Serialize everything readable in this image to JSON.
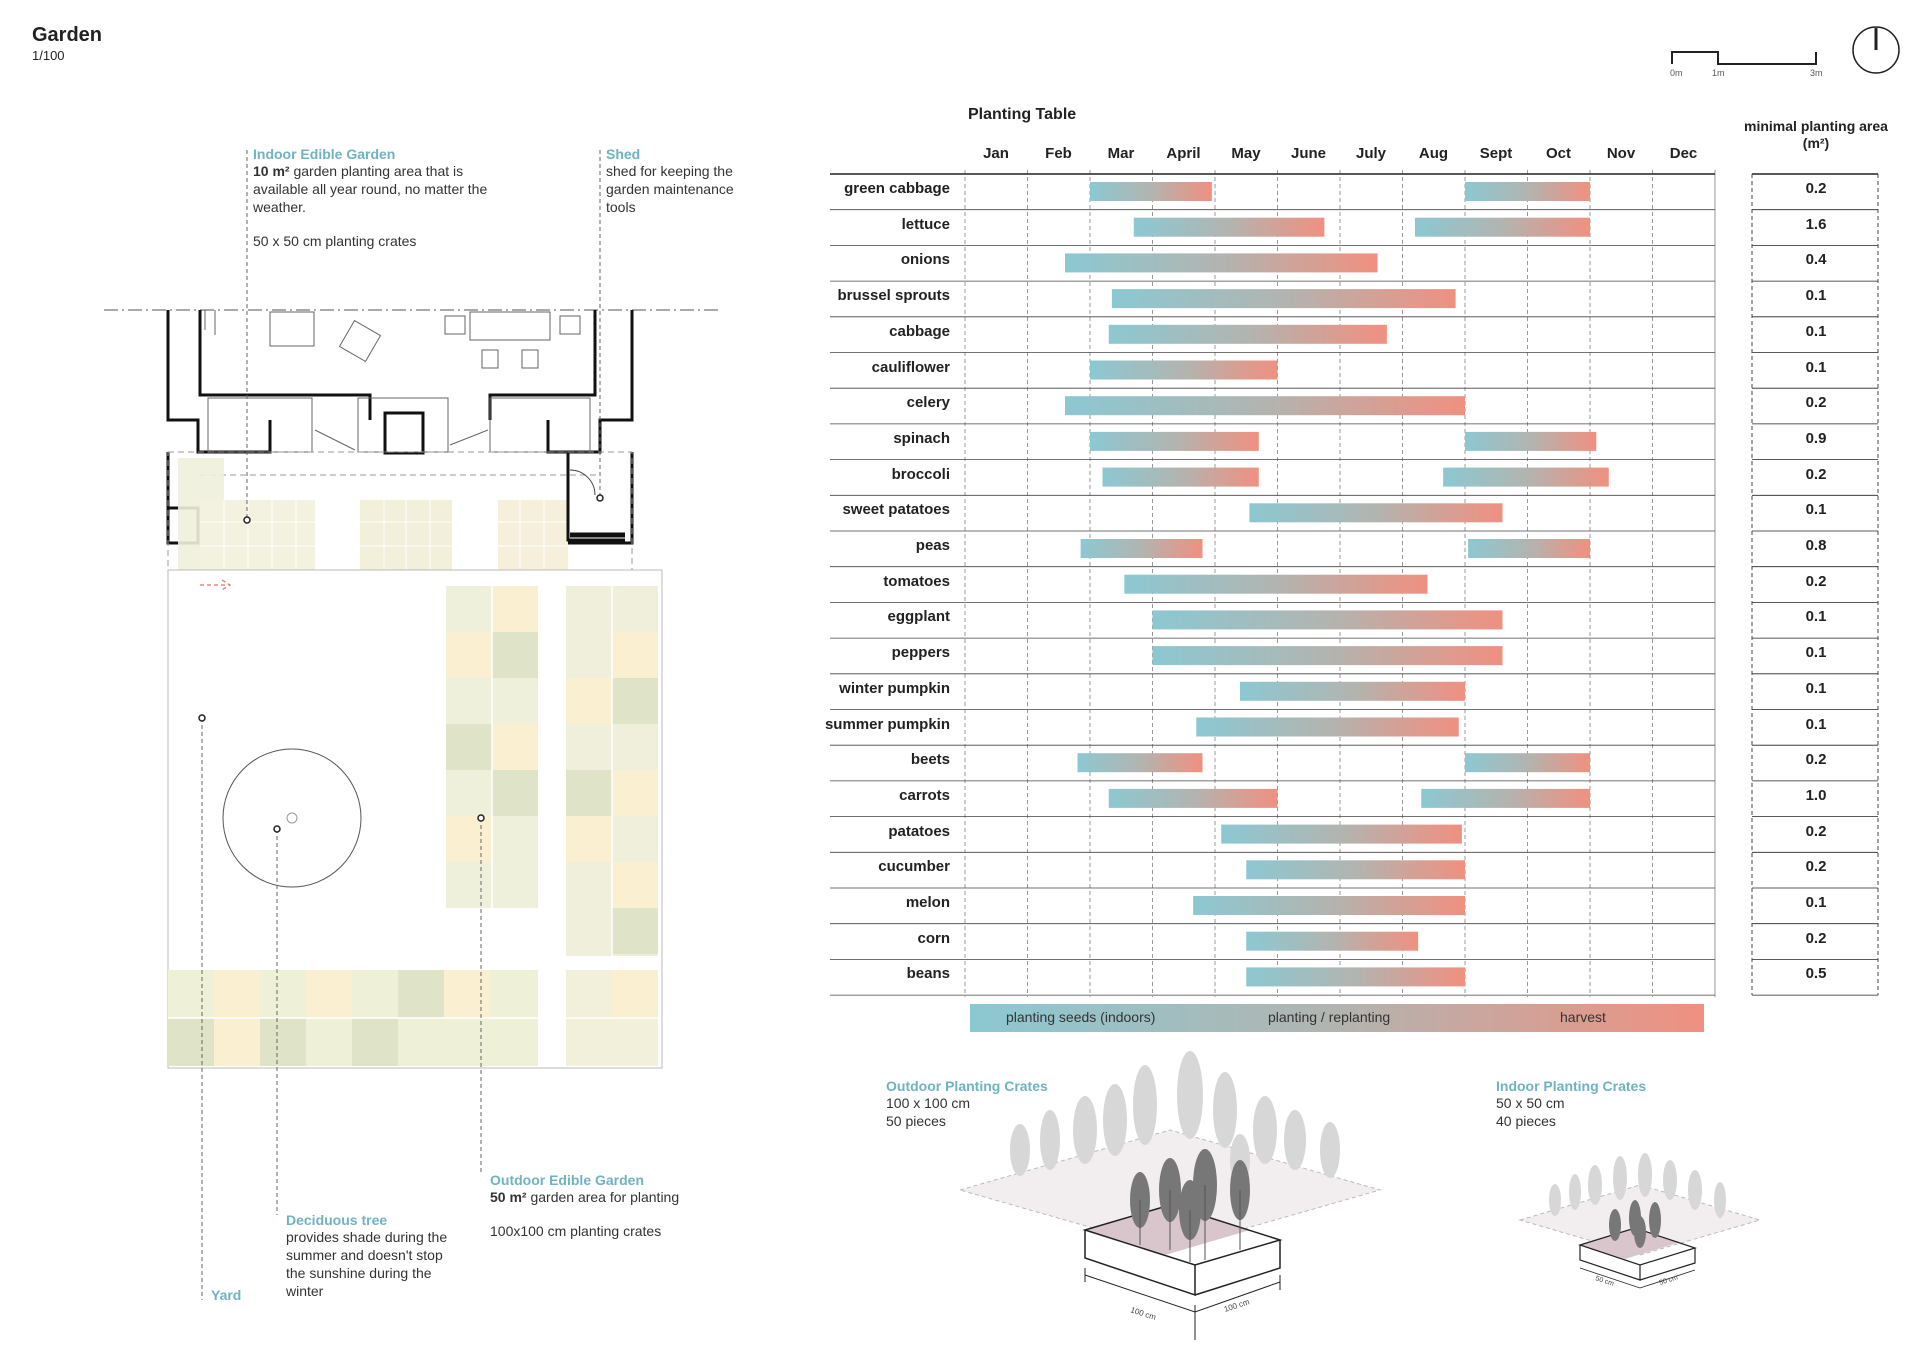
{
  "header": {
    "title": "Garden",
    "scale": "1/100"
  },
  "scale_bar": {
    "labels": [
      "0m",
      "1m",
      "3m"
    ]
  },
  "plan_labels": {
    "indoor": {
      "heading": "Indoor Edible Garden",
      "bold": "10 m²",
      "text": " garden planting area that is available all year round, no matter the weather.",
      "crates": "50 x 50 cm planting crates"
    },
    "shed": {
      "heading": "Shed",
      "text": "shed for keeping the garden maintenance tools"
    },
    "outdoor": {
      "heading": "Outdoor Edible Garden",
      "bold": "50 m²",
      "text": " garden area for planting",
      "crates": "100x100 cm planting crates"
    },
    "tree": {
      "heading": "Deciduous tree",
      "text": "provides shade during the summer and doesn't stop the sunshine during the winter"
    },
    "yard": {
      "heading": "Yard"
    }
  },
  "planting_table": {
    "title": "Planting Table",
    "area_header": "minimal planting area (m²)",
    "legend": {
      "seeds": "planting seeds (indoors)",
      "planting": "planting / replanting",
      "harvest": "harvest"
    },
    "colors": {
      "seeds": "#8cc8d2",
      "planting": "#b2b4b0",
      "harvest": "#f09080"
    }
  },
  "chart_data": {
    "type": "gantt",
    "title": "Planting Table",
    "months": [
      "Jan",
      "Feb",
      "Mar",
      "April",
      "May",
      "June",
      "July",
      "Aug",
      "Sept",
      "Oct",
      "Nov",
      "Dec"
    ],
    "crops": [
      {
        "name": "green cabbage",
        "area": "0.2",
        "periods": [
          [
            2.0,
            3.95
          ],
          [
            8.0,
            10.0
          ]
        ]
      },
      {
        "name": "lettuce",
        "area": "1.6",
        "periods": [
          [
            2.7,
            5.75
          ],
          [
            7.2,
            10.0
          ]
        ]
      },
      {
        "name": "onions",
        "area": "0.4",
        "periods": [
          [
            1.6,
            6.6
          ]
        ]
      },
      {
        "name": "brussel sprouts",
        "area": "0.1",
        "periods": [
          [
            2.35,
            7.85
          ]
        ]
      },
      {
        "name": "cabbage",
        "area": "0.1",
        "periods": [
          [
            2.3,
            6.75
          ]
        ]
      },
      {
        "name": "cauliflower",
        "area": "0.1",
        "periods": [
          [
            2.0,
            5.0
          ]
        ]
      },
      {
        "name": "celery",
        "area": "0.2",
        "periods": [
          [
            1.6,
            8.0
          ]
        ]
      },
      {
        "name": "spinach",
        "area": "0.9",
        "periods": [
          [
            2.0,
            4.7
          ],
          [
            8.0,
            10.1
          ]
        ]
      },
      {
        "name": "broccoli",
        "area": "0.2",
        "periods": [
          [
            2.2,
            4.7
          ],
          [
            7.65,
            10.3
          ]
        ]
      },
      {
        "name": "sweet patatoes",
        "area": "0.1",
        "periods": [
          [
            4.55,
            8.6
          ]
        ]
      },
      {
        "name": "peas",
        "area": "0.8",
        "periods": [
          [
            1.85,
            3.8
          ],
          [
            8.05,
            10.0
          ]
        ]
      },
      {
        "name": "tomatoes",
        "area": "0.2",
        "periods": [
          [
            2.55,
            7.4
          ]
        ]
      },
      {
        "name": "eggplant",
        "area": "0.1",
        "periods": [
          [
            3.0,
            8.6
          ]
        ]
      },
      {
        "name": "peppers",
        "area": "0.1",
        "periods": [
          [
            3.0,
            8.6
          ]
        ]
      },
      {
        "name": "winter pumpkin",
        "area": "0.1",
        "periods": [
          [
            4.4,
            8.0
          ]
        ]
      },
      {
        "name": "summer pumpkin",
        "area": "0.1",
        "periods": [
          [
            3.7,
            7.9
          ]
        ]
      },
      {
        "name": "beets",
        "area": "0.2",
        "periods": [
          [
            1.8,
            3.8
          ],
          [
            8.0,
            10.0
          ]
        ]
      },
      {
        "name": "carrots",
        "area": "1.0",
        "periods": [
          [
            2.3,
            5.0
          ],
          [
            7.3,
            10.0
          ]
        ]
      },
      {
        "name": "patatoes",
        "area": "0.2",
        "periods": [
          [
            4.1,
            7.95
          ]
        ]
      },
      {
        "name": "cucumber",
        "area": "0.2",
        "periods": [
          [
            4.5,
            8.0
          ]
        ]
      },
      {
        "name": "melon",
        "area": "0.1",
        "periods": [
          [
            3.65,
            8.0
          ]
        ]
      },
      {
        "name": "corn",
        "area": "0.2",
        "periods": [
          [
            4.5,
            7.25
          ]
        ]
      },
      {
        "name": "beans",
        "area": "0.5",
        "periods": [
          [
            4.5,
            8.0
          ]
        ]
      }
    ]
  },
  "crates": {
    "outdoor": {
      "heading": "Outdoor Planting Crates",
      "size": "100 x 100 cm",
      "count": "50 pieces",
      "dim1": "100 cm",
      "dim2": "100 cm"
    },
    "indoor": {
      "heading": "Indoor Planting Crates",
      "size": "50 x 50 cm",
      "count": "40 pieces",
      "dim1": "50 cm",
      "dim2": "50 cm"
    }
  }
}
